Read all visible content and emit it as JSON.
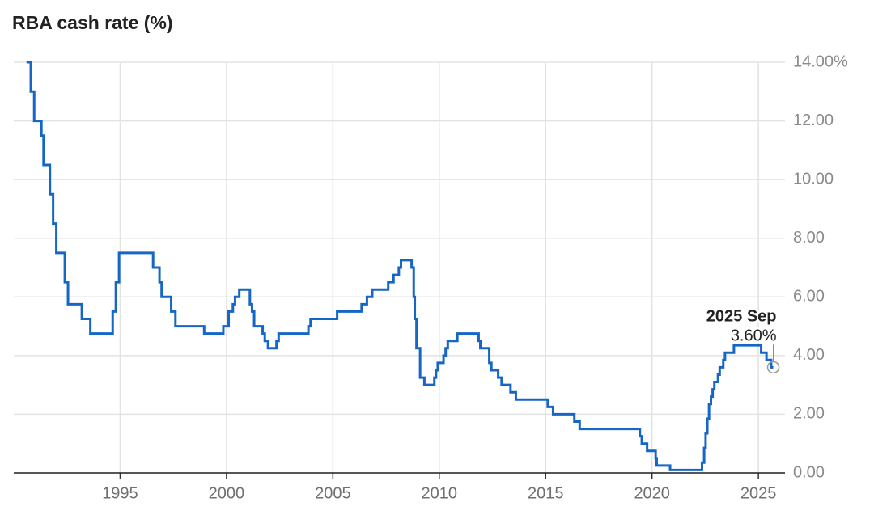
{
  "chart_data": {
    "type": "line",
    "title": "RBA cash rate (%)",
    "step": true,
    "grid": true,
    "x": [
      1990.6,
      1990.8,
      1990.96,
      1991.3,
      1991.4,
      1991.7,
      1991.85,
      1992.0,
      1992.4,
      1992.55,
      1993.2,
      1993.6,
      1994.65,
      1994.8,
      1994.95,
      1996.55,
      1996.85,
      1996.95,
      1997.4,
      1997.6,
      1998.95,
      1999.85,
      2000.1,
      2000.3,
      2000.4,
      2000.6,
      2001.1,
      2001.2,
      2001.3,
      2001.7,
      2001.8,
      2001.95,
      2002.35,
      2002.45,
      2003.85,
      2003.95,
      2005.2,
      2006.35,
      2006.6,
      2006.85,
      2007.6,
      2007.85,
      2008.1,
      2008.2,
      2008.7,
      2008.8,
      2008.85,
      2008.93,
      2009.1,
      2009.3,
      2009.77,
      2009.85,
      2009.93,
      2010.2,
      2010.3,
      2010.4,
      2010.85,
      2011.85,
      2011.93,
      2012.35,
      2012.45,
      2012.77,
      2012.93,
      2013.35,
      2013.6,
      2015.1,
      2015.35,
      2016.35,
      2016.6,
      2019.43,
      2019.52,
      2019.77,
      2020.17,
      2020.22,
      2020.85,
      2022.35,
      2022.45,
      2022.52,
      2022.6,
      2022.68,
      2022.77,
      2022.85,
      2022.93,
      2023.1,
      2023.18,
      2023.35,
      2023.43,
      2023.85,
      2025.13,
      2025.38,
      2025.6,
      2025.7
    ],
    "series": [
      {
        "name": "Cash rate",
        "color": "#1666c5",
        "values": [
          14.0,
          13.0,
          12.0,
          11.5,
          10.5,
          9.5,
          8.5,
          7.5,
          6.5,
          5.75,
          5.25,
          4.75,
          5.5,
          6.5,
          7.5,
          7.0,
          6.5,
          6.0,
          5.5,
          5.0,
          4.75,
          5.0,
          5.5,
          5.75,
          6.0,
          6.25,
          5.75,
          5.5,
          5.0,
          4.75,
          4.5,
          4.25,
          4.5,
          4.75,
          5.0,
          5.25,
          5.5,
          5.75,
          6.0,
          6.25,
          6.5,
          6.75,
          7.0,
          7.25,
          7.0,
          6.0,
          5.25,
          4.25,
          3.25,
          3.0,
          3.25,
          3.5,
          3.75,
          4.0,
          4.25,
          4.5,
          4.75,
          4.5,
          4.25,
          3.75,
          3.5,
          3.25,
          3.0,
          2.75,
          2.5,
          2.25,
          2.0,
          1.75,
          1.5,
          1.25,
          1.0,
          0.75,
          0.5,
          0.25,
          0.1,
          0.35,
          0.85,
          1.35,
          1.85,
          2.35,
          2.6,
          2.85,
          3.1,
          3.35,
          3.6,
          3.85,
          4.1,
          4.35,
          4.1,
          3.85,
          3.6,
          3.6
        ]
      }
    ],
    "xlim": [
      1990,
      2026.25
    ],
    "xticks": [
      1995,
      2000,
      2005,
      2010,
      2015,
      2020,
      2025
    ],
    "ylim": [
      0,
      14
    ],
    "yticks": [
      {
        "value": 0,
        "label": "0.00"
      },
      {
        "value": 2,
        "label": "2.00"
      },
      {
        "value": 4,
        "label": "4.00"
      },
      {
        "value": 6,
        "label": "6.00"
      },
      {
        "value": 8,
        "label": "8.00"
      },
      {
        "value": 10,
        "label": "10.00"
      },
      {
        "value": 12,
        "label": "12.00"
      },
      {
        "value": 14,
        "label": "14.00%"
      }
    ],
    "annotation": {
      "x": 2025.7,
      "y": 3.6,
      "title": "2025 Sep",
      "label": "3.60%"
    }
  }
}
